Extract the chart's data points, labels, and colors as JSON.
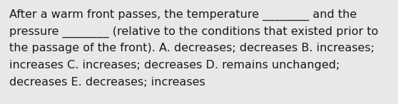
{
  "background_color": "#e8e8e8",
  "text_line1": "After a warm front passes, the temperature ________ and the",
  "text_line2": "pressure ________ (relative to the conditions that existed prior to",
  "text_line3": "the passage of the front). A. decreases; decreases B. increases;",
  "text_line4": "increases C. increases; decreases D. remains unchanged;",
  "text_line5": "decreases E. decreases; increases",
  "font_size": 11.5,
  "font_family": "DejaVu Sans",
  "text_color": "#1a1a1a",
  "fig_width": 5.58,
  "fig_height": 1.46,
  "dpi": 100
}
